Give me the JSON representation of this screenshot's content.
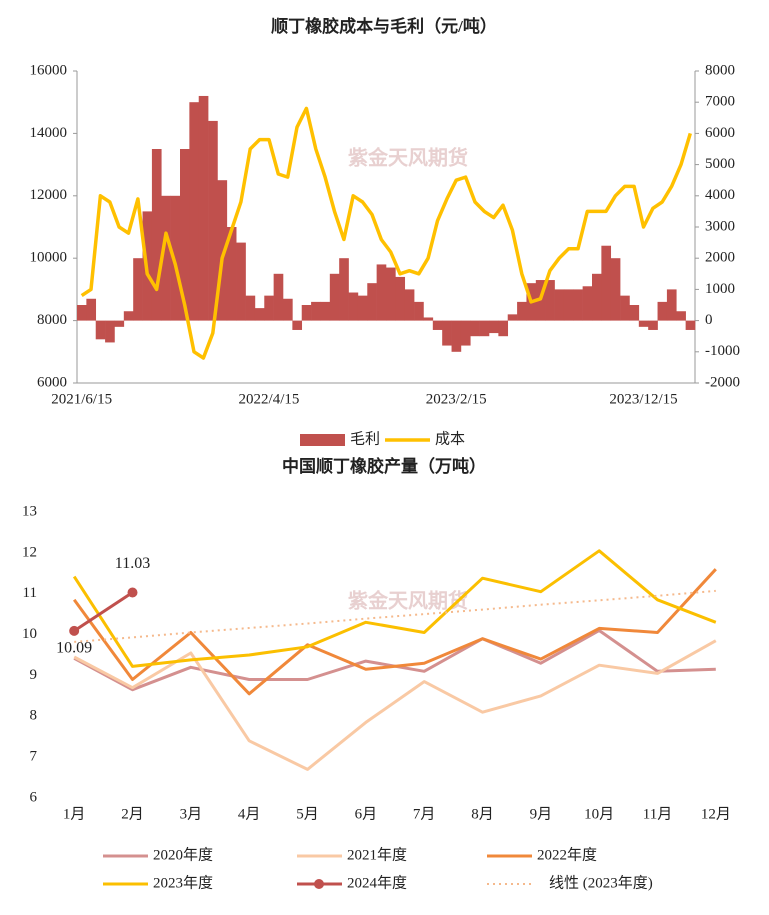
{
  "watermark": "紫金天风期货",
  "chart_data": [
    {
      "type": "bar_line",
      "title": "顺丁橡胶成本与毛利（元/吨）",
      "categories": [
        "2021/6/15",
        null,
        null,
        null,
        null,
        null,
        null,
        null,
        null,
        null,
        null,
        null,
        null,
        null,
        null,
        null,
        null,
        null,
        null,
        null,
        "2022/4/15",
        null,
        null,
        null,
        null,
        null,
        null,
        null,
        null,
        null,
        null,
        null,
        null,
        null,
        null,
        null,
        null,
        null,
        null,
        null,
        "2023/2/15",
        null,
        null,
        null,
        null,
        null,
        null,
        null,
        null,
        null,
        null,
        null,
        null,
        null,
        null,
        null,
        null,
        null,
        null,
        null,
        "2023/12/15",
        null,
        null,
        null,
        null,
        null
      ],
      "series": [
        {
          "name": "毛利",
          "type": "bar",
          "axis": "y2",
          "color": "#c0504d",
          "values": [
            500,
            700,
            -600,
            -700,
            -200,
            300,
            2000,
            3500,
            5500,
            4000,
            4000,
            5500,
            7000,
            7200,
            6400,
            4500,
            3000,
            2500,
            800,
            400,
            800,
            1500,
            700,
            -300,
            500,
            600,
            600,
            1500,
            2000,
            900,
            800,
            1200,
            1800,
            1700,
            1400,
            1000,
            600,
            100,
            -300,
            -800,
            -1000,
            -800,
            -500,
            -500,
            -400,
            -500,
            200,
            600,
            1200,
            1300,
            1300,
            1000,
            1000,
            1000,
            1100,
            1500,
            2400,
            2000,
            800,
            500,
            -200,
            -300,
            600,
            1000,
            300,
            -300
          ]
        },
        {
          "name": "成本",
          "type": "line",
          "color": "#ffc000",
          "values": [
            8800,
            9000,
            12000,
            11800,
            11000,
            10800,
            11900,
            9500,
            9000,
            10800,
            9800,
            8500,
            7000,
            6800,
            7600,
            10000,
            10900,
            11800,
            13500,
            13800,
            13800,
            12700,
            12600,
            14200,
            14800,
            13500,
            12600,
            11500,
            10600,
            12000,
            11800,
            11400,
            10600,
            10200,
            9500,
            9600,
            9500,
            10000,
            11200,
            11900,
            12500,
            12600,
            11800,
            11500,
            11300,
            11700,
            10900,
            9500,
            8600,
            8700,
            9600,
            10000,
            10300,
            10300,
            11500,
            11500,
            11500,
            12000,
            12300,
            12300,
            11000,
            11600,
            11800,
            12300,
            13000,
            14000
          ]
        }
      ],
      "ylim": [
        6000,
        16000
      ],
      "yticks": [
        6000,
        8000,
        10000,
        12000,
        14000,
        16000
      ],
      "y2lim": [
        -2000,
        8000
      ],
      "y2ticks": [
        -2000,
        -1000,
        0,
        1000,
        2000,
        3000,
        4000,
        5000,
        6000,
        7000,
        8000
      ],
      "legend": "bottom"
    },
    {
      "type": "line",
      "title": "中国顺丁橡胶产量（万吨）",
      "categories": [
        "1月",
        "2月",
        "3月",
        "4月",
        "5月",
        "6月",
        "7月",
        "8月",
        "9月",
        "10月",
        "11月",
        "12月"
      ],
      "series": [
        {
          "name": "2020年度",
          "color": "#d4908f",
          "values": [
            9.42,
            8.65,
            9.2,
            8.9,
            8.9,
            9.35,
            9.1,
            9.9,
            9.3,
            10.1,
            9.1,
            9.15
          ]
        },
        {
          "name": "2021年度",
          "color": "#f9c9a4",
          "values": [
            9.45,
            8.7,
            9.55,
            7.4,
            6.7,
            7.85,
            8.85,
            8.1,
            8.5,
            9.25,
            9.05,
            9.85
          ]
        },
        {
          "name": "2022年度",
          "color": "#f0883a",
          "values": [
            10.85,
            8.9,
            10.05,
            8.55,
            9.75,
            9.15,
            9.3,
            9.9,
            9.4,
            10.15,
            10.05,
            11.6
          ]
        },
        {
          "name": "2023年度",
          "color": "#fbbf00",
          "values": [
            11.42,
            9.22,
            9.38,
            9.5,
            9.7,
            10.3,
            10.05,
            11.38,
            11.05,
            12.05,
            10.85,
            10.3
          ]
        },
        {
          "name": "2024年度",
          "color": "#c0504d",
          "marker": true,
          "data_labels": true,
          "values": [
            10.09,
            11.03,
            null,
            null,
            null,
            null,
            null,
            null,
            null,
            null,
            null,
            null
          ]
        },
        {
          "name": "线性 (2023年度)",
          "color": "#f5b98c",
          "dash": true,
          "values": [
            9.82,
            9.93,
            10.05,
            10.16,
            10.27,
            10.39,
            10.5,
            10.61,
            10.73,
            10.84,
            10.95,
            11.07
          ]
        }
      ],
      "ylim": [
        6,
        13
      ],
      "yticks": [
        6,
        7,
        8,
        9,
        10,
        11,
        12,
        13
      ],
      "legend": "bottom"
    }
  ]
}
